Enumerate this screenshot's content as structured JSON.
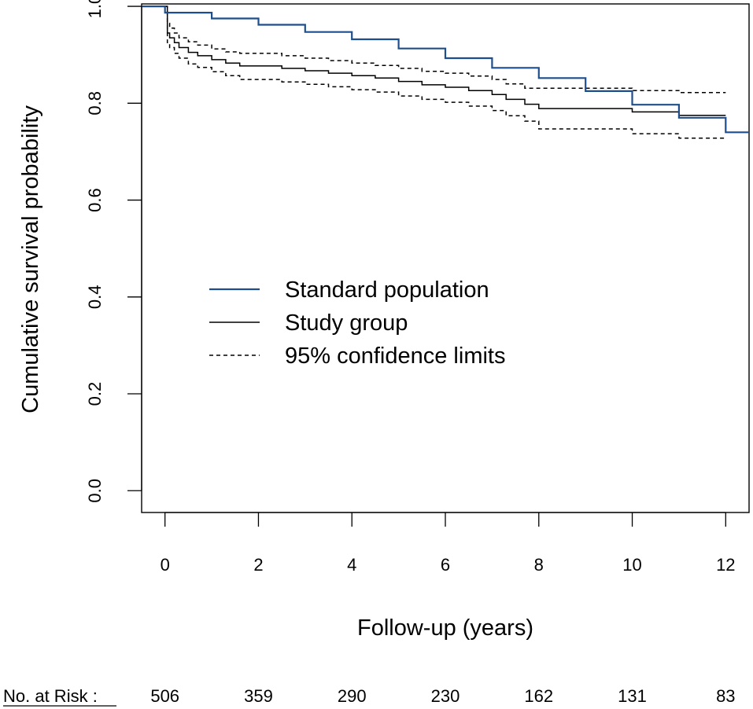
{
  "chart_data": {
    "type": "line",
    "title": "",
    "xlabel": "Follow-up (years)",
    "ylabel": "Cumulative survival probability",
    "xlim": [
      -0.5,
      12.5
    ],
    "ylim": [
      -0.045,
      1.005
    ],
    "x_ticks": [
      0,
      2,
      4,
      6,
      8,
      10,
      12
    ],
    "x_tick_labels": [
      "0",
      "2",
      "4",
      "6",
      "8",
      "10",
      "12"
    ],
    "y_ticks": [
      0.0,
      0.2,
      0.4,
      0.6,
      0.8,
      1.0
    ],
    "y_tick_labels": [
      "0.0",
      "0.2",
      "0.4",
      "0.6",
      "0.8",
      "1.0"
    ],
    "grid": false,
    "legend_position": "center-left",
    "series": [
      {
        "name": "Standard population",
        "style": "solid",
        "color": "#1f4e8c",
        "step": true,
        "x": [
          -0.5,
          0,
          1,
          2,
          3,
          4,
          5,
          6,
          7,
          8,
          9,
          10,
          11,
          12,
          12.5
        ],
        "y": [
          1.0,
          0.987,
          0.975,
          0.962,
          0.947,
          0.932,
          0.913,
          0.893,
          0.873,
          0.852,
          0.825,
          0.797,
          0.77,
          0.74,
          0.74
        ]
      },
      {
        "name": "Study group",
        "style": "solid",
        "color": "#000000",
        "step": true,
        "x": [
          0,
          0.05,
          0.1,
          0.2,
          0.3,
          0.5,
          0.7,
          1.0,
          1.3,
          1.6,
          2.5,
          3.0,
          3.5,
          4.0,
          4.5,
          5.0,
          5.5,
          6.0,
          6.5,
          7.0,
          7.3,
          7.7,
          8.0,
          8.5,
          9.0,
          9.5,
          10.0,
          10.5,
          11.0,
          12.0
        ],
        "y": [
          1.0,
          0.945,
          0.935,
          0.925,
          0.915,
          0.905,
          0.898,
          0.89,
          0.883,
          0.877,
          0.872,
          0.867,
          0.862,
          0.857,
          0.852,
          0.845,
          0.838,
          0.833,
          0.826,
          0.818,
          0.808,
          0.798,
          0.789,
          0.789,
          0.789,
          0.789,
          0.782,
          0.782,
          0.775,
          0.775
        ]
      },
      {
        "name": "95% confidence limits",
        "style": "dashed",
        "color": "#000000",
        "step": true,
        "x": [
          0,
          0.05,
          0.1,
          0.2,
          0.3,
          0.5,
          0.7,
          1.0,
          1.3,
          1.6,
          2.5,
          3.0,
          3.5,
          4.0,
          4.5,
          5.0,
          5.5,
          6.0,
          6.5,
          7.0,
          7.3,
          7.7,
          8.0,
          8.5,
          9.0,
          9.5,
          10.0,
          10.5,
          11.0,
          12.0
        ],
        "y": [
          1.0,
          0.965,
          0.955,
          0.945,
          0.935,
          0.927,
          0.92,
          0.912,
          0.906,
          0.903,
          0.898,
          0.893,
          0.888,
          0.883,
          0.878,
          0.872,
          0.866,
          0.862,
          0.856,
          0.849,
          0.84,
          0.831,
          0.831,
          0.831,
          0.831,
          0.831,
          0.826,
          0.826,
          0.822,
          0.822
        ]
      },
      {
        "name": "",
        "style": "dashed",
        "color": "#000000",
        "step": true,
        "x": [
          0,
          0.05,
          0.1,
          0.2,
          0.3,
          0.5,
          0.7,
          1.0,
          1.3,
          1.6,
          2.5,
          3.0,
          3.5,
          4.0,
          4.5,
          5.0,
          5.5,
          6.0,
          6.5,
          7.0,
          7.3,
          7.7,
          8.0,
          8.5,
          9.0,
          9.5,
          10.0,
          10.5,
          11.0,
          12.0
        ],
        "y": [
          1.0,
          0.925,
          0.915,
          0.903,
          0.893,
          0.881,
          0.874,
          0.865,
          0.857,
          0.849,
          0.844,
          0.839,
          0.834,
          0.828,
          0.823,
          0.815,
          0.808,
          0.802,
          0.794,
          0.785,
          0.774,
          0.763,
          0.747,
          0.747,
          0.747,
          0.747,
          0.737,
          0.737,
          0.728,
          0.728
        ]
      }
    ],
    "legend": [
      {
        "label": "Standard population",
        "style": "solid",
        "color": "#1f4e8c"
      },
      {
        "label": "Study group",
        "style": "solid",
        "color": "#000000"
      },
      {
        "label": "95% confidence limits",
        "style": "dashed",
        "color": "#000000"
      }
    ],
    "at_risk": {
      "label": "No. at Risk :",
      "x": [
        0,
        2,
        4,
        6,
        8,
        10,
        12
      ],
      "values": [
        "506",
        "359",
        "290",
        "230",
        "162",
        "131",
        "83"
      ]
    }
  }
}
